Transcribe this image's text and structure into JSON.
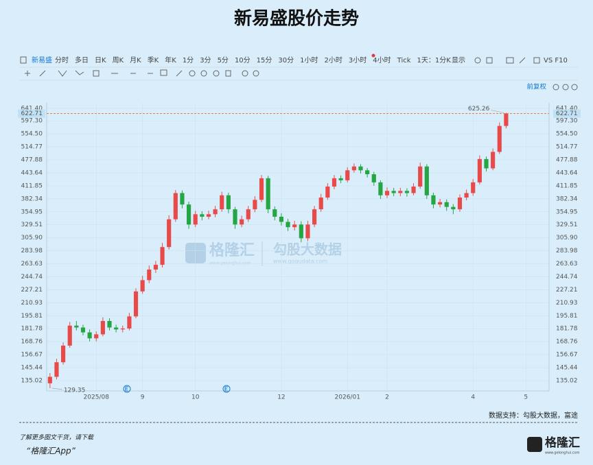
{
  "chart_data": {
    "type": "candlestick",
    "title": "新易盛股价走势",
    "categories": [
      null,
      null,
      null,
      null,
      null,
      null,
      null,
      "2025/08",
      null,
      null,
      null,
      null,
      null,
      null,
      "9",
      null,
      null,
      null,
      null,
      null,
      null,
      null,
      "10",
      null,
      null,
      null,
      null,
      null,
      null,
      null,
      null,
      null,
      null,
      null,
      null,
      "12",
      null,
      null,
      null,
      null,
      null,
      null,
      null,
      null,
      null,
      "2026/01",
      null,
      null,
      null,
      null,
      null,
      "2",
      null,
      null,
      null,
      null,
      null,
      null,
      null,
      null,
      null,
      null,
      null,
      null,
      "4",
      null,
      null,
      null,
      null,
      null,
      null,
      null,
      "5",
      null,
      null,
      null
    ],
    "open": [
      133,
      138,
      150,
      165,
      185,
      183,
      178,
      172,
      176,
      190,
      183,
      181,
      182,
      195,
      225,
      240,
      255,
      262,
      290,
      340,
      395,
      370,
      330,
      350,
      345,
      350,
      360,
      390,
      360,
      330,
      340,
      360,
      380,
      430,
      360,
      345,
      335,
      325,
      330,
      305,
      330,
      360,
      385,
      410,
      430,
      425,
      450,
      460,
      450,
      440,
      420,
      390,
      400,
      395,
      400,
      395,
      410,
      460,
      390,
      370,
      375,
      365,
      360,
      385,
      395,
      420,
      480,
      455,
      500,
      580,
      null,
      null,
      null,
      null,
      null,
      null
    ],
    "high": [
      141,
      153,
      168,
      189,
      190,
      186,
      181,
      179,
      194,
      193,
      186,
      185,
      199,
      229,
      246,
      261,
      268,
      297,
      348,
      402,
      401,
      376,
      357,
      356,
      357,
      367,
      398,
      396,
      365,
      347,
      367,
      388,
      438,
      436,
      366,
      352,
      341,
      337,
      336,
      337,
      367,
      393,
      418,
      438,
      437,
      458,
      468,
      466,
      456,
      446,
      425,
      408,
      407,
      407,
      406,
      418,
      470,
      466,
      396,
      382,
      381,
      371,
      392,
      403,
      428,
      490,
      487,
      510,
      592,
      625.26,
      null,
      null,
      null,
      null,
      null,
      null
    ],
    "low": [
      129.35,
      136,
      148,
      163,
      180,
      175,
      169,
      169,
      174,
      180,
      178,
      178,
      180,
      193,
      222,
      236,
      250,
      258,
      286,
      335,
      362,
      322,
      325,
      338,
      340,
      344,
      355,
      352,
      322,
      325,
      335,
      354,
      375,
      352,
      338,
      328,
      318,
      319,
      298,
      300,
      325,
      355,
      380,
      404,
      418,
      420,
      444,
      442,
      432,
      412,
      382,
      384,
      388,
      388,
      387,
      390,
      405,
      382,
      362,
      364,
      357,
      350,
      355,
      379,
      389,
      415,
      447,
      450,
      494,
      572,
      null,
      null,
      null,
      null,
      null,
      null
    ],
    "close": [
      138,
      150,
      165,
      185,
      183,
      178,
      172,
      176,
      190,
      183,
      181,
      182,
      195,
      225,
      240,
      255,
      262,
      290,
      340,
      395,
      370,
      330,
      350,
      345,
      350,
      360,
      390,
      360,
      330,
      340,
      360,
      380,
      430,
      360,
      345,
      335,
      325,
      330,
      305,
      330,
      360,
      385,
      410,
      430,
      425,
      450,
      460,
      450,
      440,
      420,
      390,
      400,
      395,
      400,
      395,
      410,
      460,
      390,
      370,
      375,
      365,
      360,
      385,
      395,
      420,
      480,
      455,
      500,
      580,
      622.71,
      null,
      null,
      null,
      null,
      null,
      null
    ],
    "up_color": "#e84a4a",
    "down_color": "#25a544",
    "log": true,
    "ylim": [
      127.3,
      661.9
    ],
    "yticks": [
      {
        "value": 641.4,
        "label": "641.40"
      },
      {
        "value": 597.3,
        "label": "597.30"
      },
      {
        "value": 554.5,
        "label": "554.50"
      },
      514.77,
      477.88,
      443.64,
      411.85,
      382.34,
      354.95,
      329.51,
      {
        "value": 305.9,
        "label": "305.90"
      },
      283.98,
      263.63,
      244.74,
      227.21,
      210.93,
      195.81,
      181.78,
      168.76,
      156.67,
      145.44,
      135.02
    ],
    "grid": true,
    "current_price": 622.71,
    "max_label": 625.26,
    "min_label": 129.35
  },
  "toolbar": {
    "stock": "新易盛",
    "periods": [
      "分时",
      "多日",
      "日K",
      "周K",
      "月K",
      "季K",
      "年K",
      "1分",
      "3分",
      "5分",
      "10分",
      "15分",
      "30分",
      "1小时",
      "2小时",
      "3小时",
      "4小时",
      "Tick",
      "1天：1分K"
    ],
    "active": "日K",
    "display": "显示",
    "vs": "VS F10",
    "adjust": "前复权"
  },
  "watermark": {
    "brand": "格隆汇",
    "site": "www.gelonghui.com",
    "data": "勾股大数据",
    "data_site": "www.gogudata.com"
  },
  "footer": {
    "source": "数据支持：勾股大数据，富途",
    "promo": "了解更多图文干货，请下载",
    "app": "“格隆汇App”",
    "logo": "格隆汇",
    "logo_site": "www.gelonghui.com"
  }
}
